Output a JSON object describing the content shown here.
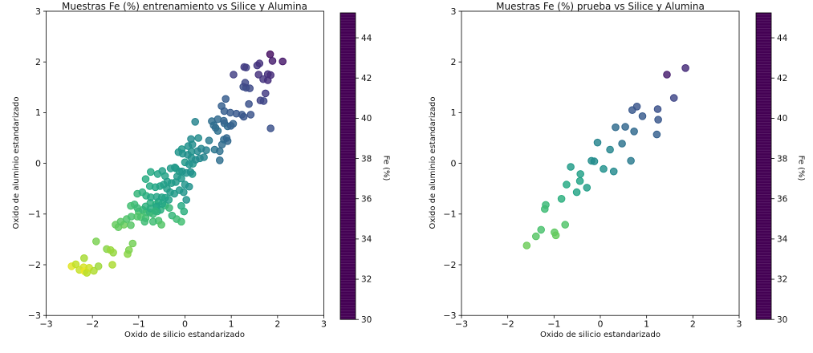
{
  "figure": {
    "background": "#ffffff"
  },
  "colormap": {
    "name": "viridis",
    "stops": [
      "#440154",
      "#482475",
      "#414487",
      "#355f8d",
      "#2a788e",
      "#21918c",
      "#22a884",
      "#44bf70",
      "#7ad151",
      "#bddf26",
      "#fde725"
    ]
  },
  "colorbar": {
    "label": "Fe (%)",
    "vmin": 30,
    "vmax": 45.24,
    "ticks": [
      30,
      32,
      34,
      36,
      38,
      40,
      42,
      44
    ]
  },
  "chart_data": [
    {
      "type": "scatter",
      "title": "Muestras Fe (%) entrenamiento vs Silice y Alumina",
      "xlabel": "Oxido de silicio estandarizado",
      "ylabel": "Oxido de aluminio estandarizado",
      "color_label": "Fe (%)",
      "xlim": [
        -3,
        3
      ],
      "ylim": [
        -3,
        3
      ],
      "xticks": [
        -3,
        -2,
        -1,
        0,
        1,
        2,
        3
      ],
      "yticks": [
        -3,
        -2,
        -1,
        0,
        1,
        2,
        3
      ],
      "grid": false,
      "points": [
        [
          -2.45,
          -2.03,
          44.6
        ],
        [
          -2.36,
          -1.99,
          43.8
        ],
        [
          -2.28,
          -2.1,
          43.9
        ],
        [
          -2.19,
          -2.05,
          44.3
        ],
        [
          -2.17,
          -2.13,
          44.8
        ],
        [
          -2.12,
          -2.16,
          43.6
        ],
        [
          -2.07,
          -2.06,
          44.1
        ],
        [
          -1.97,
          -2.12,
          43.4
        ],
        [
          -2.18,
          -1.87,
          43.2
        ],
        [
          -1.87,
          -2.03,
          43.0
        ],
        [
          -1.57,
          -2.0,
          43.3
        ],
        [
          -1.55,
          -1.76,
          42.8
        ],
        [
          -1.69,
          -1.69,
          42.5
        ],
        [
          -1.61,
          -1.71,
          42.9
        ],
        [
          -1.92,
          -1.54,
          42.2
        ],
        [
          -1.24,
          -1.79,
          42.6
        ],
        [
          -1.21,
          -1.71,
          42.3
        ],
        [
          -1.13,
          -1.58,
          42.0
        ],
        [
          -1.5,
          -1.21,
          41.6
        ],
        [
          -1.44,
          -1.26,
          41.5
        ],
        [
          -1.32,
          -1.21,
          41.8
        ],
        [
          -1.17,
          -1.22,
          41.2
        ],
        [
          -1.39,
          -1.15,
          41.3
        ],
        [
          -1.26,
          -1.1,
          41.0
        ],
        [
          -1.16,
          -1.05,
          40.8
        ],
        [
          -1.09,
          -0.81,
          40.3
        ],
        [
          -1.0,
          -0.95,
          40.8
        ],
        [
          -0.91,
          -0.92,
          40.1
        ],
        [
          -0.83,
          -0.96,
          40.5
        ],
        [
          -1.03,
          -1.05,
          41.0
        ],
        [
          -0.95,
          -1.06,
          40.9
        ],
        [
          -0.85,
          -1.08,
          40.6
        ],
        [
          -0.76,
          -0.97,
          39.9
        ],
        [
          -0.69,
          -1.0,
          40.2
        ],
        [
          -0.6,
          -0.95,
          39.7
        ],
        [
          -0.53,
          -0.92,
          39.5
        ],
        [
          -0.63,
          -0.81,
          39.8
        ],
        [
          -0.75,
          -0.78,
          39.6
        ],
        [
          -0.57,
          -1.13,
          40.7
        ],
        [
          -0.51,
          -1.21,
          41.1
        ],
        [
          -0.28,
          -1.03,
          40.0
        ],
        [
          -0.18,
          -1.1,
          40.4
        ],
        [
          -0.08,
          -1.15,
          40.6
        ],
        [
          -0.87,
          -1.15,
          40.4
        ],
        [
          -0.69,
          -1.15,
          40.5
        ],
        [
          -1.17,
          -0.84,
          40.6
        ],
        [
          -1.03,
          -0.88,
          40.3
        ],
        [
          -1.03,
          -0.6,
          40.0
        ],
        [
          -0.57,
          -0.76,
          39.4
        ],
        [
          -0.43,
          -0.83,
          39.9
        ],
        [
          -0.34,
          -0.88,
          40.1
        ],
        [
          -0.08,
          -0.84,
          39.3
        ],
        [
          -0.02,
          -0.95,
          39.6
        ],
        [
          -0.92,
          -0.57,
          39.6
        ],
        [
          -0.84,
          -0.64,
          39.5
        ],
        [
          -0.74,
          -0.67,
          39.1
        ],
        [
          -0.61,
          -0.66,
          38.9
        ],
        [
          -0.5,
          -0.67,
          38.7
        ],
        [
          -0.85,
          -0.85,
          39.7
        ],
        [
          -0.75,
          -0.89,
          39.5
        ],
        [
          -0.61,
          -0.85,
          39.0
        ],
        [
          -0.85,
          -0.31,
          39.4
        ],
        [
          -0.76,
          -0.45,
          39.3
        ],
        [
          -0.64,
          -0.47,
          39.0
        ],
        [
          -0.54,
          -0.45,
          38.8
        ],
        [
          -0.46,
          -0.42,
          38.6
        ],
        [
          -0.39,
          -0.5,
          38.5
        ],
        [
          -0.74,
          -0.17,
          39.2
        ],
        [
          -0.59,
          -0.21,
          38.9
        ],
        [
          -0.49,
          -0.15,
          38.6
        ],
        [
          -0.43,
          -0.25,
          38.7
        ],
        [
          -0.49,
          -0.8,
          39.0
        ],
        [
          -0.43,
          -0.68,
          38.8
        ],
        [
          -0.35,
          -0.72,
          38.6
        ],
        [
          -0.64,
          -0.94,
          39.8
        ],
        [
          -0.07,
          0.28,
          38.0
        ],
        [
          0.14,
          0.23,
          37.8
        ],
        [
          0.0,
          0.02,
          38.2
        ],
        [
          0.17,
          -0.01,
          37.9
        ],
        [
          -0.2,
          -0.1,
          38.4
        ],
        [
          -0.12,
          -0.16,
          38.3
        ],
        [
          0.16,
          -0.21,
          38.0
        ],
        [
          -0.31,
          -0.1,
          38.2
        ],
        [
          -0.22,
          -0.08,
          38.1
        ],
        [
          -0.06,
          -0.16,
          37.9
        ],
        [
          0.03,
          -0.19,
          37.8
        ],
        [
          0.12,
          -0.17,
          37.6
        ],
        [
          -0.17,
          -0.26,
          38.2
        ],
        [
          -0.08,
          -0.3,
          38.0
        ],
        [
          -0.38,
          -0.36,
          38.4
        ],
        [
          -0.29,
          -0.39,
          38.3
        ],
        [
          -0.2,
          -0.37,
          38.1
        ],
        [
          0.0,
          -0.42,
          37.9
        ],
        [
          0.09,
          -0.46,
          37.7
        ],
        [
          -0.12,
          -0.53,
          38.0
        ],
        [
          -0.03,
          -0.57,
          37.9
        ],
        [
          -0.32,
          -0.57,
          38.3
        ],
        [
          -0.23,
          -0.6,
          38.2
        ],
        [
          0.03,
          -0.72,
          37.8
        ],
        [
          0.13,
          0.48,
          37.2
        ],
        [
          0.29,
          0.5,
          37.3
        ],
        [
          0.07,
          0.34,
          37.6
        ],
        [
          0.16,
          0.37,
          37.4
        ],
        [
          -0.14,
          0.22,
          37.9
        ],
        [
          -0.05,
          0.19,
          37.7
        ],
        [
          0.06,
          0.17,
          37.5
        ],
        [
          0.14,
          0.11,
          37.6
        ],
        [
          0.23,
          0.07,
          37.4
        ],
        [
          0.32,
          0.1,
          37.2
        ],
        [
          0.09,
          -0.02,
          37.7
        ],
        [
          0.27,
          0.24,
          37.2
        ],
        [
          0.22,
          0.82,
          36.8
        ],
        [
          0.35,
          0.29,
          36.9
        ],
        [
          0.46,
          0.26,
          36.6
        ],
        [
          0.41,
          0.12,
          36.8
        ],
        [
          0.52,
          0.45,
          36.2
        ],
        [
          0.62,
          0.75,
          35.4
        ],
        [
          0.85,
          0.79,
          35.0
        ],
        [
          0.92,
          0.73,
          35.2
        ],
        [
          1.04,
          0.78,
          34.8
        ],
        [
          0.71,
          0.64,
          35.6
        ],
        [
          0.64,
          0.27,
          35.9
        ],
        [
          0.75,
          0.24,
          35.6
        ],
        [
          0.58,
          0.83,
          35.5
        ],
        [
          0.71,
          0.87,
          35.2
        ],
        [
          0.66,
          0.7,
          35.4
        ],
        [
          0.84,
          0.84,
          34.9
        ],
        [
          0.99,
          0.74,
          34.7
        ],
        [
          0.84,
          0.47,
          35.3
        ],
        [
          0.92,
          0.44,
          35.1
        ],
        [
          0.9,
          0.5,
          35.0
        ],
        [
          0.8,
          0.37,
          35.4
        ],
        [
          0.75,
          0.06,
          35.5
        ],
        [
          0.88,
          1.27,
          34.4
        ],
        [
          0.79,
          1.13,
          34.6
        ],
        [
          0.85,
          1.03,
          34.5
        ],
        [
          0.98,
          1.0,
          34.3
        ],
        [
          1.11,
          0.98,
          34.2
        ],
        [
          1.27,
          0.92,
          34.0
        ],
        [
          1.42,
          0.96,
          33.9
        ],
        [
          1.23,
          0.96,
          34.1
        ],
        [
          1.38,
          1.17,
          33.8
        ],
        [
          1.26,
          1.51,
          33.6
        ],
        [
          1.4,
          1.48,
          33.4
        ],
        [
          1.32,
          1.49,
          33.5
        ],
        [
          1.3,
          1.59,
          33.3
        ],
        [
          1.85,
          0.69,
          33.8
        ],
        [
          1.05,
          1.75,
          32.8
        ],
        [
          1.59,
          1.75,
          32.2
        ],
        [
          1.69,
          1.66,
          32.4
        ],
        [
          1.79,
          1.64,
          32.0
        ],
        [
          1.74,
          1.38,
          32.6
        ],
        [
          1.63,
          1.24,
          33.0
        ],
        [
          1.7,
          1.23,
          33.2
        ],
        [
          1.56,
          1.93,
          32.4
        ],
        [
          1.61,
          1.97,
          32.2
        ],
        [
          1.32,
          1.89,
          32.9
        ],
        [
          1.28,
          1.9,
          32.7
        ],
        [
          1.79,
          1.76,
          32.1
        ],
        [
          1.85,
          1.74,
          31.9
        ],
        [
          1.84,
          2.15,
          30.6
        ],
        [
          1.89,
          2.02,
          31.2
        ],
        [
          2.11,
          2.01,
          31.0
        ]
      ]
    },
    {
      "type": "scatter",
      "title": "Muestras Fe (%) prueba vs Silice y Alumina",
      "xlabel": "Oxido de silicio estandarizado",
      "ylabel": "Oxido de aluminio estandarizado",
      "color_label": "Fe (%)",
      "xlim": [
        -3,
        3
      ],
      "ylim": [
        -3,
        3
      ],
      "xticks": [
        -3,
        -2,
        -1,
        0,
        1,
        2,
        3
      ],
      "yticks": [
        -3,
        -2,
        -1,
        0,
        1,
        2,
        3
      ],
      "grid": false,
      "points": [
        [
          1.44,
          1.75,
          31.2
        ],
        [
          1.84,
          1.88,
          31.9
        ],
        [
          1.59,
          1.29,
          33.2
        ],
        [
          0.69,
          1.05,
          34.2
        ],
        [
          0.79,
          1.12,
          34.0
        ],
        [
          0.91,
          0.93,
          34.3
        ],
        [
          1.24,
          1.07,
          33.8
        ],
        [
          1.25,
          0.86,
          34.1
        ],
        [
          0.33,
          0.71,
          35.3
        ],
        [
          0.54,
          0.72,
          35.0
        ],
        [
          0.73,
          0.63,
          35.2
        ],
        [
          1.22,
          0.57,
          34.6
        ],
        [
          -0.06,
          0.41,
          36.8
        ],
        [
          0.21,
          0.27,
          36.9
        ],
        [
          0.47,
          0.39,
          35.8
        ],
        [
          0.66,
          0.05,
          36.2
        ],
        [
          -0.19,
          0.05,
          37.4
        ],
        [
          -0.13,
          0.04,
          37.3
        ],
        [
          0.07,
          -0.11,
          37.6
        ],
        [
          0.29,
          -0.16,
          37.2
        ],
        [
          -0.64,
          -0.07,
          38.3
        ],
        [
          -0.43,
          -0.21,
          38.6
        ],
        [
          -0.44,
          -0.35,
          38.8
        ],
        [
          -0.29,
          -0.48,
          38.5
        ],
        [
          -0.73,
          -0.42,
          39.2
        ],
        [
          -0.51,
          -0.57,
          38.9
        ],
        [
          -0.84,
          -0.7,
          39.6
        ],
        [
          -1.18,
          -0.82,
          40.2
        ],
        [
          -1.2,
          -0.9,
          40.4
        ],
        [
          -0.76,
          -1.21,
          41.0
        ],
        [
          -0.99,
          -1.36,
          41.4
        ],
        [
          -0.96,
          -1.42,
          41.6
        ],
        [
          -1.28,
          -1.31,
          40.8
        ],
        [
          -1.39,
          -1.44,
          41.2
        ],
        [
          -1.59,
          -1.62,
          41.8
        ]
      ]
    }
  ]
}
